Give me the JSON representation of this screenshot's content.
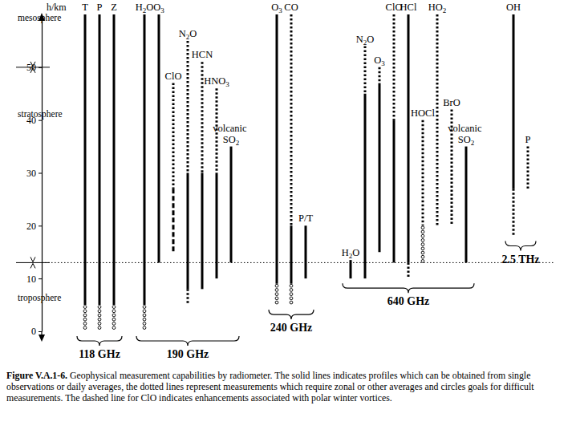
{
  "chart_data": {
    "type": "range",
    "y_label": "h/km",
    "ylim": [
      0,
      60
    ],
    "yticks": [
      0,
      10,
      20,
      30,
      40,
      50
    ],
    "layers": [
      "troposphere",
      "stratosphere",
      "mesosphere"
    ],
    "boundaries": [
      13,
      50
    ],
    "color": "#000000",
    "groups": [
      {
        "name": "118 GHz",
        "series": [
          {
            "name": "T",
            "segments": [
              {
                "line_style": "solid",
                "range": [
                  5,
                  60
                ]
              },
              {
                "line_style": "circles",
                "range": [
                  0,
                  5
                ]
              }
            ]
          },
          {
            "name": "P",
            "segments": [
              {
                "line_style": "solid",
                "range": [
                  5,
                  60
                ]
              },
              {
                "line_style": "circles",
                "range": [
                  0,
                  5
                ]
              }
            ]
          },
          {
            "name": "Z",
            "segments": [
              {
                "line_style": "solid",
                "range": [
                  5,
                  60
                ]
              },
              {
                "line_style": "circles",
                "range": [
                  0,
                  5
                ]
              }
            ]
          }
        ]
      },
      {
        "name": "190 GHz",
        "series": [
          {
            "name": "H2O",
            "segments": [
              {
                "line_style": "solid",
                "range": [
                  5,
                  60
                ]
              },
              {
                "line_style": "circles",
                "range": [
                  0,
                  5
                ]
              }
            ]
          },
          {
            "name": "O3",
            "segments": [
              {
                "line_style": "solid",
                "range": [
                  13,
                  60
                ]
              }
            ]
          },
          {
            "name": "ClO",
            "segments": [
              {
                "line_style": "dotted",
                "range": [
                  27,
                  47
                ]
              },
              {
                "line_style": "dashed",
                "range": [
                  15,
                  27
                ]
              }
            ]
          },
          {
            "name": "N2O",
            "segments": [
              {
                "line_style": "dotted",
                "range": [
                  30,
                  55
                ]
              },
              {
                "line_style": "solid",
                "range": [
                  8,
                  30
                ]
              },
              {
                "line_style": "dotted",
                "range": [
                  5,
                  8
                ]
              }
            ]
          },
          {
            "name": "HCN",
            "segments": [
              {
                "line_style": "dotted",
                "range": [
                  30,
                  51
                ]
              },
              {
                "line_style": "solid",
                "range": [
                  8,
                  30
                ]
              }
            ]
          },
          {
            "name": "HNO3",
            "segments": [
              {
                "line_style": "dotted",
                "range": [
                  30,
                  46
                ]
              },
              {
                "line_style": "solid",
                "range": [
                  10,
                  30
                ]
              }
            ]
          },
          {
            "name": "volcanic SO2",
            "segments": [
              {
                "line_style": "solid",
                "range": [
                  13,
                  35
                ]
              }
            ]
          }
        ]
      },
      {
        "name": "240 GHz",
        "series": [
          {
            "name": "O3",
            "segments": [
              {
                "line_style": "solid",
                "range": [
                  9,
                  60
                ]
              },
              {
                "line_style": "circles",
                "range": [
                  5,
                  9
                ]
              }
            ]
          },
          {
            "name": "CO",
            "segments": [
              {
                "line_style": "dotted",
                "range": [
                  20,
                  60
                ]
              },
              {
                "line_style": "solid",
                "range": [
                  9,
                  20
                ]
              },
              {
                "line_style": "circles",
                "range": [
                  5,
                  9
                ]
              }
            ]
          },
          {
            "name": "P/T",
            "segments": [
              {
                "line_style": "solid",
                "range": [
                  10,
                  20
                ]
              }
            ]
          }
        ]
      },
      {
        "name": "640 GHz",
        "series": [
          {
            "name": "H2O",
            "segments": [
              {
                "line_style": "solid",
                "range": [
                  10,
                  13.5
                ]
              }
            ]
          },
          {
            "name": "N2O",
            "segments": [
              {
                "line_style": "dotted",
                "range": [
                  45,
                  54
                ]
              },
              {
                "line_style": "solid",
                "range": [
                  10,
                  45
                ]
              }
            ]
          },
          {
            "name": "O3",
            "segments": [
              {
                "line_style": "dotted",
                "range": [
                  47,
                  50
                ]
              },
              {
                "line_style": "solid",
                "range": [
                  15,
                  47
                ]
              }
            ]
          },
          {
            "name": "ClO",
            "segments": [
              {
                "line_style": "dotted",
                "range": [
                  40,
                  60
                ]
              },
              {
                "line_style": "solid",
                "range": [
                  13,
                  40
                ]
              }
            ]
          },
          {
            "name": "HCl",
            "segments": [
              {
                "line_style": "solid",
                "range": [
                  13,
                  60
                ]
              },
              {
                "line_style": "dotted",
                "range": [
                  10,
                  13
                ]
              }
            ]
          },
          {
            "name": "HOCl",
            "segments": [
              {
                "line_style": "dotted",
                "range": [
                  20,
                  40
                ]
              },
              {
                "line_style": "circles",
                "range": [
                  13,
                  20
                ]
              }
            ]
          },
          {
            "name": "HO2",
            "segments": [
              {
                "line_style": "dotted",
                "range": [
                  20,
                  60
                ]
              }
            ]
          },
          {
            "name": "BrO",
            "segments": [
              {
                "line_style": "dotted",
                "range": [
                  20,
                  42
                ]
              }
            ]
          },
          {
            "name": "volcanic SO2",
            "segments": [
              {
                "line_style": "solid",
                "range": [
                  13,
                  35
                ]
              }
            ]
          }
        ]
      },
      {
        "name": "2.5 THz",
        "series": [
          {
            "name": "OH",
            "segments": [
              {
                "line_style": "solid",
                "range": [
                  27,
                  60
                ]
              },
              {
                "line_style": "dotted",
                "range": [
                  18,
                  27
                ]
              }
            ]
          },
          {
            "name": "P",
            "segments": [
              {
                "line_style": "dotted",
                "range": [
                  27,
                  35
                ]
              }
            ]
          }
        ]
      }
    ],
    "caption_label": "Figure V.A.1-6.",
    "caption": "Geophysical measurement capabilities by radiometer. The solid lines indicates profiles which can be obtained from single observations or daily averages, the dotted lines represent measurements which require zonal or other averages and circles goals for difficult measurements.  The dashed line for ClO indicates enhancements associated with polar winter vortices."
  }
}
